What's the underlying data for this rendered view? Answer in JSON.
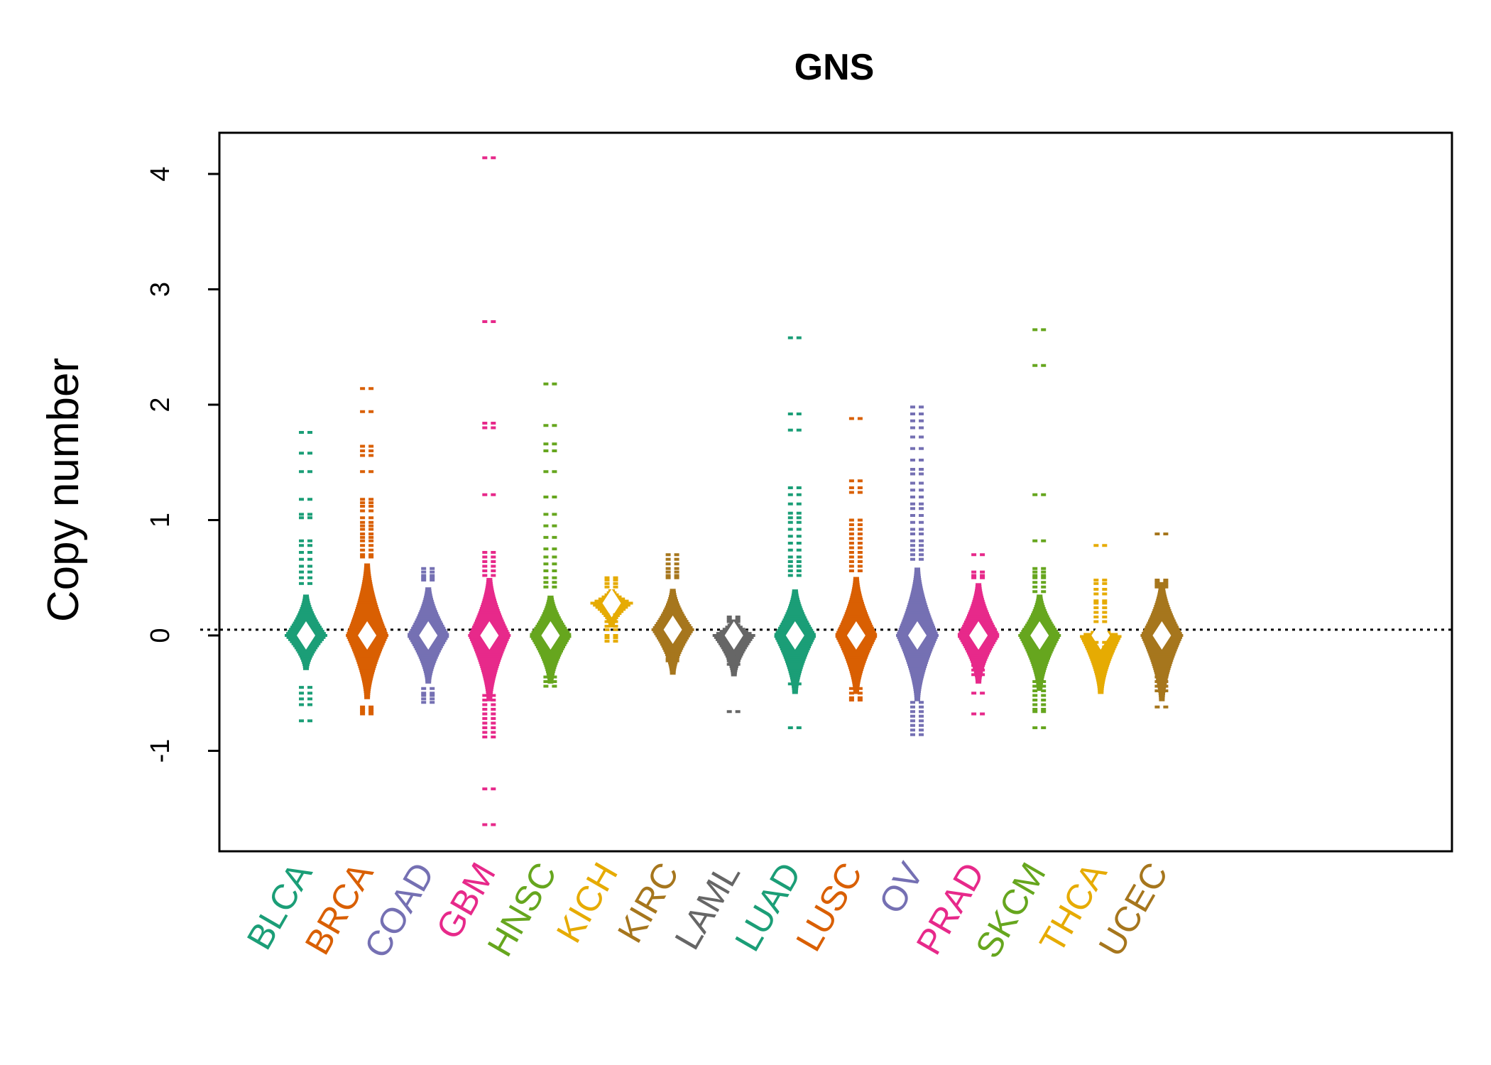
{
  "chart_data": {
    "type": "scatter",
    "title": "GNS",
    "xlabel": "",
    "ylabel": "Copy number",
    "ylim": [
      -1.85,
      4.35
    ],
    "yticks": [
      -1,
      0,
      1,
      2,
      3,
      4
    ],
    "reference_line": 0.05,
    "grid": false,
    "legend": "none",
    "categories": [
      {
        "name": "BLCA",
        "color": "#1B9E77",
        "median": 0.0,
        "peak": 0.35,
        "hw": 0.32,
        "tails": [
          1.76,
          1.58,
          1.42,
          1.18,
          1.05,
          1.02,
          0.82,
          0.78,
          0.72,
          0.66,
          0.6,
          0.55,
          0.5,
          0.45,
          -0.45,
          -0.5,
          -0.55,
          -0.6,
          -0.74
        ]
      },
      {
        "name": "BRCA",
        "color": "#D95F02",
        "median": 0.0,
        "peak": 0.62,
        "hw": 0.6,
        "tails": [
          2.14,
          1.94,
          1.64,
          1.6,
          1.56,
          1.42,
          1.18,
          1.15,
          1.12,
          1.08,
          1.02,
          0.98,
          0.95,
          0.92,
          0.88,
          0.85,
          0.82,
          0.78,
          0.74,
          0.7,
          0.68,
          -0.62,
          -0.64,
          -0.66,
          -0.68
        ]
      },
      {
        "name": "COAD",
        "color": "#7570B3",
        "median": 0.0,
        "peak": 0.42,
        "hw": 0.45,
        "tails": [
          0.58,
          0.55,
          0.52,
          0.5,
          0.48,
          -0.46,
          -0.5,
          -0.52,
          -0.55,
          -0.58
        ]
      },
      {
        "name": "GBM",
        "color": "#E7298A",
        "median": 0.0,
        "peak": 0.5,
        "hw": 0.62,
        "tails": [
          4.14,
          2.72,
          1.84,
          1.8,
          1.22,
          0.72,
          0.68,
          0.64,
          0.6,
          0.56,
          0.52,
          -0.52,
          -0.56,
          -0.6,
          -0.64,
          -0.68,
          -0.72,
          -0.76,
          -0.8,
          -0.84,
          -0.88,
          -1.33,
          -1.64
        ]
      },
      {
        "name": "HNSC",
        "color": "#66A61E",
        "median": 0.0,
        "peak": 0.35,
        "hw": 0.45,
        "tails": [
          2.18,
          1.82,
          1.66,
          1.6,
          1.42,
          1.2,
          1.05,
          0.95,
          0.85,
          0.75,
          0.68,
          0.62,
          0.56,
          0.5,
          0.46,
          0.42,
          -0.36,
          -0.4,
          -0.44
        ]
      },
      {
        "name": "KICH",
        "color": "#E6AB02",
        "median": 0.28,
        "peak": 0.12,
        "hw": 0.22,
        "tails": [
          0.5,
          0.48,
          0.45,
          0.42,
          0.18,
          0.12,
          0.08,
          0.05,
          0.0,
          -0.02,
          -0.05
        ]
      },
      {
        "name": "KIRC",
        "color": "#A6761D",
        "median": 0.05,
        "peak": 0.35,
        "hw": 0.42,
        "tails": [
          0.7,
          0.66,
          0.62,
          0.58,
          0.55,
          0.52,
          0.5,
          -0.14,
          -0.17,
          -0.2,
          -0.22
        ]
      },
      {
        "name": "LAML",
        "color": "#666666",
        "median": 0.0,
        "peak": 0.14,
        "hw": 0.38,
        "tails": [
          0.16,
          0.14,
          0.12,
          -0.14,
          -0.18,
          -0.22,
          -0.25,
          -0.66
        ]
      },
      {
        "name": "LUAD",
        "color": "#1B9E77",
        "median": 0.0,
        "peak": 0.4,
        "hw": 0.55,
        "tails": [
          2.58,
          1.92,
          1.78,
          1.28,
          1.22,
          1.14,
          1.06,
          1.02,
          0.98,
          0.92,
          0.86,
          0.8,
          0.74,
          0.68,
          0.64,
          0.6,
          0.56,
          0.52,
          -0.42,
          -0.8
        ]
      },
      {
        "name": "LUSC",
        "color": "#D95F02",
        "median": 0.0,
        "peak": 0.5,
        "hw": 0.55,
        "tails": [
          1.88,
          1.34,
          1.28,
          1.24,
          1.0,
          0.96,
          0.92,
          0.88,
          0.84,
          0.8,
          0.76,
          0.72,
          0.68,
          0.64,
          0.6,
          0.56,
          -0.46,
          -0.5,
          -0.54,
          -0.56
        ]
      },
      {
        "name": "OV",
        "color": "#7570B3",
        "median": 0.0,
        "peak": 0.58,
        "hw": 0.62,
        "tails": [
          1.98,
          1.92,
          1.86,
          1.8,
          1.72,
          1.62,
          1.52,
          1.44,
          1.4,
          1.32,
          1.26,
          1.2,
          1.14,
          1.1,
          1.04,
          0.98,
          0.92,
          0.88,
          0.82,
          0.78,
          0.74,
          0.7,
          0.66,
          -0.58,
          -0.62,
          -0.66,
          -0.7,
          -0.74,
          -0.78,
          -0.82,
          -0.86
        ]
      },
      {
        "name": "PRAD",
        "color": "#E7298A",
        "median": 0.0,
        "peak": 0.45,
        "hw": 0.45,
        "tails": [
          0.7,
          0.55,
          0.52,
          0.5,
          -0.26,
          -0.3,
          -0.34,
          -0.5,
          -0.68
        ]
      },
      {
        "name": "SKCM",
        "color": "#66A61E",
        "median": 0.0,
        "peak": 0.35,
        "hw": 0.52,
        "tails": [
          2.65,
          2.34,
          1.22,
          0.82,
          0.58,
          0.55,
          0.52,
          0.5,
          0.46,
          0.42,
          0.38,
          -0.4,
          -0.44,
          -0.48,
          -0.52,
          -0.56,
          -0.6,
          -0.64,
          -0.66,
          -0.8
        ]
      },
      {
        "name": "THCA",
        "color": "#E6AB02",
        "median": 0.0,
        "peak": 0.06,
        "hw": 0.55,
        "tails": [
          0.78,
          0.48,
          0.45,
          0.4,
          0.36,
          0.3,
          0.28,
          0.24,
          0.2,
          0.16,
          0.12,
          -0.06,
          -0.1
        ]
      },
      {
        "name": "UCEC",
        "color": "#A6761D",
        "median": 0.0,
        "peak": 0.45,
        "hw": 0.62,
        "tails": [
          0.88,
          0.48,
          0.46,
          0.44,
          0.42,
          -0.32,
          -0.36,
          -0.4,
          -0.44,
          -0.48,
          -0.62
        ]
      }
    ]
  }
}
